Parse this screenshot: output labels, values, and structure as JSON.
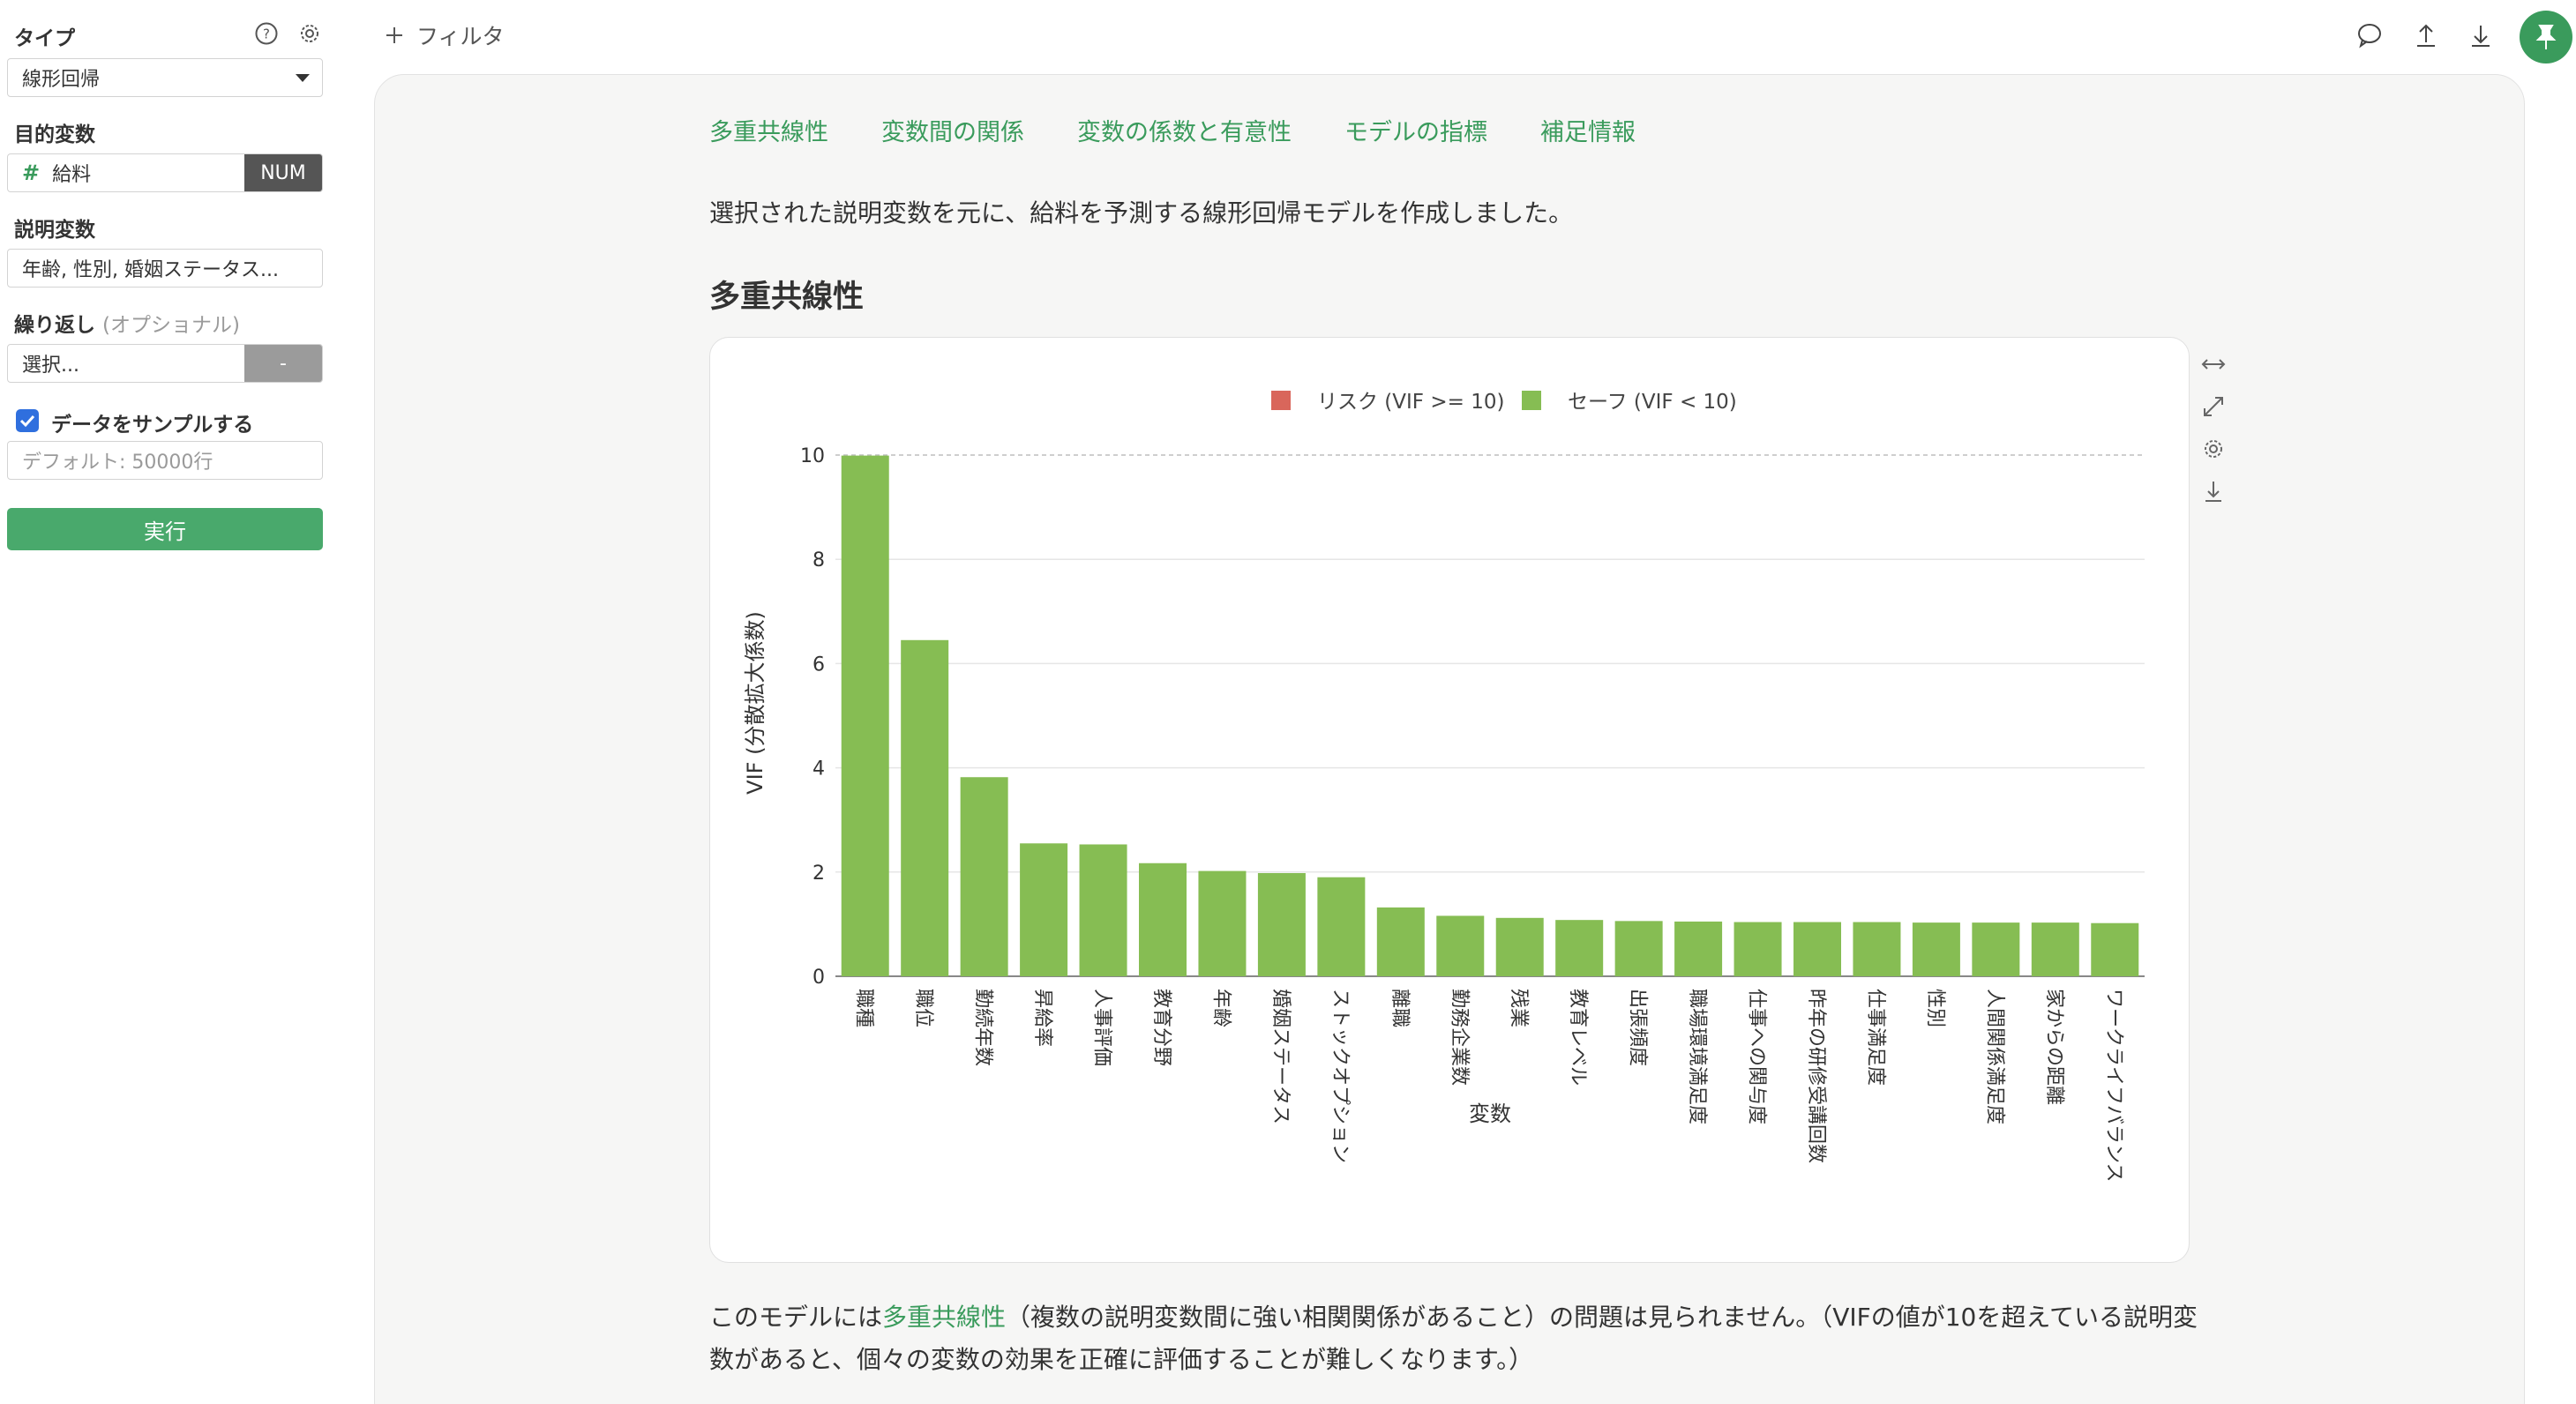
{
  "sidebar": {
    "type_label": "タイプ",
    "type_value": "線形回帰",
    "target_label": "目的変数",
    "target_value": "給料",
    "target_tag": "NUM",
    "explanatory_label": "説明変数",
    "explanatory_value": "年齢, 性別, 婚姻ステータス...",
    "repeat_label": "繰り返し",
    "repeat_optional": "(オプショナル)",
    "repeat_placeholder": "選択...",
    "repeat_tag": "-",
    "sample_label": "データをサンプルする",
    "sample_checked": true,
    "sample_placeholder": "デフォルト: 50000行",
    "run_label": "実行"
  },
  "topbar": {
    "filter_label": "フィルタ"
  },
  "tabs": [
    "多重共線性",
    "変数間の関係",
    "変数の係数と有意性",
    "モデルの指標",
    "補足情報"
  ],
  "intro_text": "選択された説明変数を元に、給料を予測する線形回帰モデルを作成しました。",
  "section_title": "多重共線性",
  "note": {
    "prefix": "このモデルには",
    "link": "多重共線性",
    "suffix": "（複数の説明変数間に強い相関関係があること）の問題は見られません。（VIFの値が10を超えている説明変数があると、個々の変数の効果を正確に評価することが難しくなります。）"
  },
  "colors": {
    "accent": "#3a9b5c",
    "safe": "#86bd53",
    "risk": "#d9665b"
  },
  "chart_data": {
    "type": "bar",
    "legend": [
      {
        "name": "リスク (VIF >= 10)",
        "color": "#d9665b"
      },
      {
        "name": "セーフ (VIF < 10)",
        "color": "#86bd53"
      }
    ],
    "legend_position": "top",
    "xlabel": "変数",
    "ylabel": "VIF (分散拡大係数)",
    "ylim": [
      0,
      10
    ],
    "yticks": [
      0,
      2,
      4,
      6,
      8,
      10
    ],
    "threshold": 10,
    "categories": [
      "職種",
      "職位",
      "勤続年数",
      "昇給率",
      "人事評価",
      "教育分野",
      "年齢",
      "婚姻ステータス",
      "ストックオプション",
      "離職",
      "勤務企業数",
      "残業",
      "教育レベル",
      "出張頻度",
      "職場環境満足度",
      "仕事への関与度",
      "昨年の研修受講回数",
      "仕事満足度",
      "性別",
      "人間関係満足度",
      "家からの距離",
      "ワークライフバランス"
    ],
    "values": [
      9.99,
      6.45,
      3.82,
      2.55,
      2.53,
      2.17,
      2.02,
      1.98,
      1.9,
      1.32,
      1.16,
      1.12,
      1.08,
      1.06,
      1.05,
      1.04,
      1.04,
      1.04,
      1.03,
      1.03,
      1.03,
      1.02
    ],
    "grid": true
  }
}
